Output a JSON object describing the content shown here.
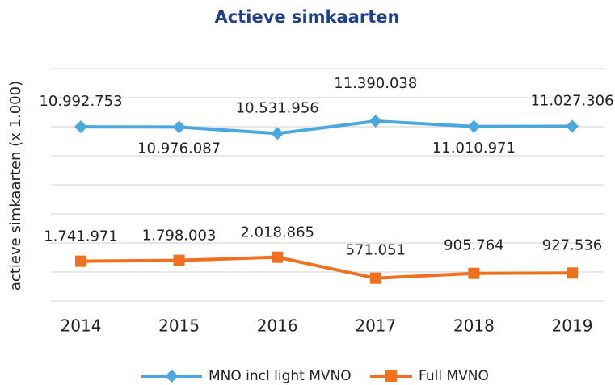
{
  "chart_data": {
    "type": "line",
    "title": "Actieve simkaarten",
    "y_label": "actieve simkaarten (x 1.000)",
    "categories": [
      "2014",
      "2015",
      "2016",
      "2017",
      "2018",
      "2019"
    ],
    "ylim": [
      -1000000,
      15000000
    ],
    "yticks": [
      -1000000,
      1000000,
      3000000,
      5000000,
      7000000,
      9000000,
      11000000,
      13000000,
      15000000
    ],
    "grid": true,
    "series": [
      {
        "name": "MNO incl light MVNO",
        "color": "#4aa8de",
        "marker": "diamond",
        "values": [
          10992753,
          10976087,
          10531956,
          11390038,
          11010971,
          11027306
        ],
        "value_labels": [
          "10.992.753",
          "10.976.087",
          "10.531.956",
          "11.390.038",
          "11.010.971",
          "11.027.306"
        ]
      },
      {
        "name": "Full MVNO",
        "color": "#f07020",
        "marker": "square",
        "values": [
          1741971,
          1798003,
          2018865,
          571051,
          905764,
          927536
        ],
        "value_labels": [
          "1.741.971",
          "1.798.003",
          "2.018.865",
          "571.051",
          "905.764",
          "927.536"
        ]
      }
    ],
    "legend": "bottom"
  }
}
